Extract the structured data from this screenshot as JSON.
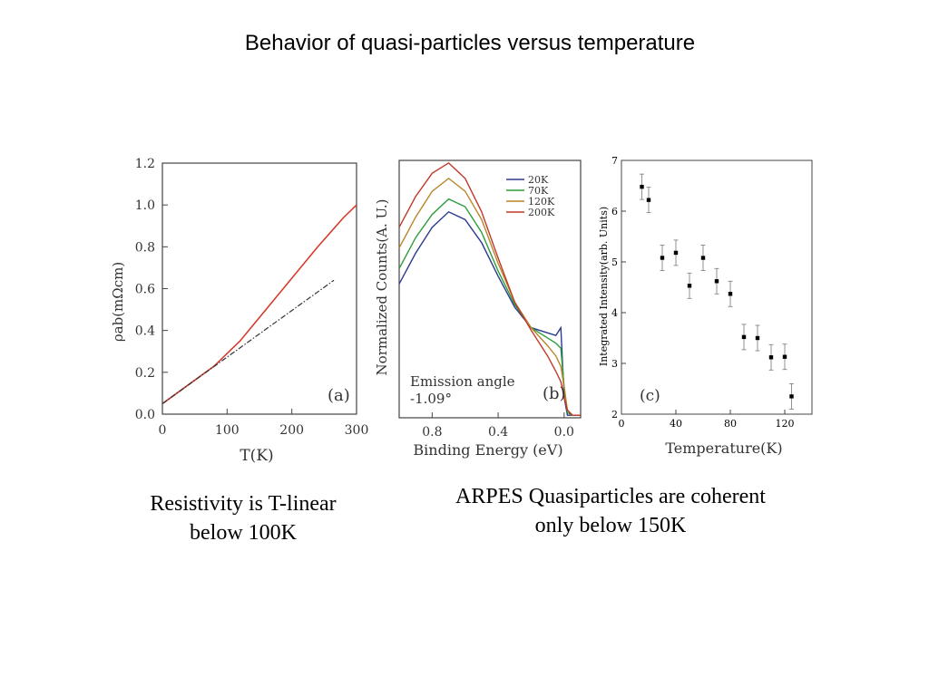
{
  "slide": {
    "title": "Behavior of quasi-particles versus temperature",
    "caption_left": [
      "Resistivity is T-linear",
      "below 100K"
    ],
    "caption_right": [
      "ARPES Quasiparticles are coherent",
      "only below 150K"
    ]
  },
  "chart_data": [
    {
      "panel": "(a)",
      "type": "line",
      "xlabel": "T(K)",
      "ylabel": "ρab(mΩcm)",
      "xlim": [
        0,
        300
      ],
      "ylim": [
        0,
        1.2
      ],
      "xticks": [
        "0",
        "100",
        "200",
        "300"
      ],
      "yticks": [
        "0.0",
        "0.2",
        "0.4",
        "0.6",
        "0.8",
        "1.0",
        "1.2"
      ],
      "series": [
        {
          "color": "#d43c2e",
          "style": "solid",
          "x": [
            0,
            40,
            80,
            120,
            160,
            200,
            240,
            280,
            300
          ],
          "y": [
            0.05,
            0.14,
            0.23,
            0.35,
            0.5,
            0.65,
            0.8,
            0.94,
            1.0
          ]
        },
        {
          "color": "#333333",
          "style": "dash-dot",
          "x": [
            0,
            265
          ],
          "y": [
            0.05,
            0.64
          ]
        }
      ]
    },
    {
      "panel": "(b)",
      "type": "line",
      "xlabel": "Binding Energy (eV)",
      "ylabel": "Normalized Counts(A. U.)",
      "xlim": [
        1.0,
        -0.1
      ],
      "ylim": [
        0,
        1
      ],
      "xticks": [
        "0.8",
        "0.4",
        "0.0"
      ],
      "annotation": [
        "Emission angle",
        "-1.09°"
      ],
      "series": [
        {
          "name": "20K",
          "color": "#2b3b8f",
          "x": [
            1.0,
            0.9,
            0.8,
            0.7,
            0.6,
            0.5,
            0.4,
            0.3,
            0.2,
            0.1,
            0.05,
            0.02,
            0.0,
            -0.02,
            -0.05,
            -0.1
          ],
          "y": [
            0.52,
            0.64,
            0.74,
            0.8,
            0.77,
            0.68,
            0.55,
            0.43,
            0.35,
            0.33,
            0.32,
            0.35,
            0.08,
            0.01,
            0.01,
            0.01
          ]
        },
        {
          "name": "70K",
          "color": "#2c9c3c",
          "x": [
            1.0,
            0.9,
            0.8,
            0.7,
            0.6,
            0.5,
            0.4,
            0.3,
            0.2,
            0.1,
            0.05,
            0.02,
            0.0,
            -0.02,
            -0.05,
            -0.1
          ],
          "y": [
            0.58,
            0.7,
            0.79,
            0.85,
            0.82,
            0.72,
            0.57,
            0.44,
            0.35,
            0.31,
            0.29,
            0.27,
            0.12,
            0.02,
            0.01,
            0.01
          ]
        },
        {
          "name": "120K",
          "color": "#b9862a",
          "x": [
            1.0,
            0.9,
            0.8,
            0.7,
            0.6,
            0.5,
            0.4,
            0.3,
            0.2,
            0.1,
            0.05,
            0.02,
            0.0,
            -0.02,
            -0.05,
            -0.1
          ],
          "y": [
            0.66,
            0.78,
            0.88,
            0.93,
            0.88,
            0.77,
            0.6,
            0.45,
            0.35,
            0.28,
            0.24,
            0.2,
            0.12,
            0.03,
            0.01,
            0.01
          ]
        },
        {
          "name": "200K",
          "color": "#c0392b",
          "x": [
            1.0,
            0.9,
            0.8,
            0.7,
            0.6,
            0.5,
            0.4,
            0.3,
            0.2,
            0.1,
            0.05,
            0.02,
            0.0,
            -0.02,
            -0.05,
            -0.1
          ],
          "y": [
            0.74,
            0.86,
            0.95,
            0.99,
            0.93,
            0.8,
            0.62,
            0.45,
            0.34,
            0.24,
            0.18,
            0.14,
            0.08,
            0.03,
            0.01,
            0.01
          ]
        }
      ]
    },
    {
      "panel": "(c)",
      "type": "scatter",
      "xlabel": "Temperature(K)",
      "ylabel": "Integrated Intensity(arb. Units)",
      "xlim": [
        0,
        140
      ],
      "ylim": [
        2,
        7
      ],
      "xticks": [
        "0",
        "40",
        "80",
        "120"
      ],
      "yticks": [
        "2",
        "3",
        "4",
        "5",
        "6",
        "7"
      ],
      "points": [
        {
          "x": 15,
          "y": 6.48,
          "err": 0.25
        },
        {
          "x": 20,
          "y": 6.22,
          "err": 0.25
        },
        {
          "x": 30,
          "y": 5.08,
          "err": 0.25
        },
        {
          "x": 40,
          "y": 5.18,
          "err": 0.25
        },
        {
          "x": 50,
          "y": 4.53,
          "err": 0.25
        },
        {
          "x": 60,
          "y": 5.08,
          "err": 0.25
        },
        {
          "x": 70,
          "y": 4.62,
          "err": 0.25
        },
        {
          "x": 80,
          "y": 4.37,
          "err": 0.25
        },
        {
          "x": 90,
          "y": 3.52,
          "err": 0.25
        },
        {
          "x": 100,
          "y": 3.5,
          "err": 0.25
        },
        {
          "x": 110,
          "y": 3.12,
          "err": 0.25
        },
        {
          "x": 120,
          "y": 3.13,
          "err": 0.25
        },
        {
          "x": 125,
          "y": 2.35,
          "err": 0.25
        }
      ]
    }
  ]
}
